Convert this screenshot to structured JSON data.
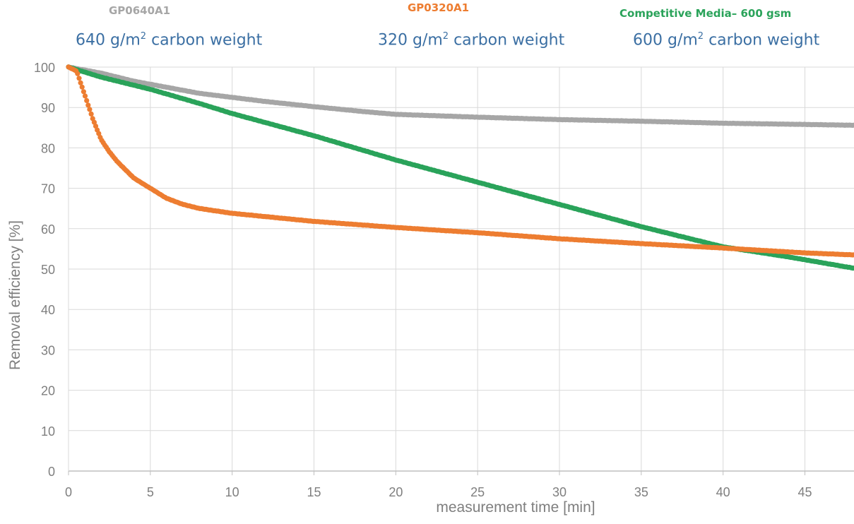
{
  "chart_data": {
    "type": "scatter",
    "xlabel": "measurement time [min]",
    "ylabel": "Removal efficiency [%]",
    "xlim": [
      0,
      48
    ],
    "ylim": [
      0,
      100
    ],
    "x_ticks": [
      "0",
      "5",
      "10",
      "15",
      "20",
      "25",
      "30",
      "35",
      "40",
      "45"
    ],
    "y_ticks": [
      "0",
      "10",
      "20",
      "30",
      "40",
      "50",
      "60",
      "70",
      "80",
      "90",
      "100"
    ],
    "grid": true,
    "legend_position": "top",
    "series": [
      {
        "name": "GP0640A1",
        "subtitle_prefix": "640 g/m",
        "subtitle_sup": "2",
        "subtitle_suffix": " carbon weight",
        "color": "#a6a6a6",
        "x": [
          0,
          2,
          4,
          6,
          8,
          10,
          12,
          15,
          18,
          20,
          25,
          30,
          35,
          40,
          45,
          48
        ],
        "y": [
          100,
          98.5,
          96.5,
          95,
          93.5,
          92.5,
          91.5,
          90.2,
          89,
          88.3,
          87.6,
          87,
          86.6,
          86.1,
          85.8,
          85.6
        ]
      },
      {
        "name": "GP0320A1",
        "subtitle_prefix": "320 g/m",
        "subtitle_sup": "2",
        "subtitle_suffix": " carbon weight",
        "color": "#ed7d31",
        "x": [
          0,
          0.5,
          1,
          1.5,
          2,
          2.5,
          3,
          3.5,
          4,
          5,
          6,
          7,
          8,
          10,
          12,
          15,
          20,
          25,
          30,
          35,
          40,
          45,
          48
        ],
        "y": [
          100,
          99,
          93,
          87,
          82,
          79,
          76.5,
          74.5,
          72.5,
          70,
          67.5,
          66,
          65,
          63.8,
          63,
          61.8,
          60.3,
          59,
          57.5,
          56.3,
          55.2,
          54,
          53.5
        ]
      },
      {
        "name": "Competitive Media– 600 gsm",
        "subtitle_prefix": "600 g/m",
        "subtitle_sup": "2",
        "subtitle_suffix": " carbon weight",
        "color": "#2aa35a",
        "x": [
          0,
          2,
          5,
          8,
          10,
          15,
          20,
          25,
          30,
          35,
          40,
          44,
          48
        ],
        "y": [
          100,
          97.5,
          94.5,
          91,
          88.5,
          83,
          77,
          71.5,
          66,
          60.5,
          55.5,
          53,
          50.2
        ]
      }
    ]
  }
}
